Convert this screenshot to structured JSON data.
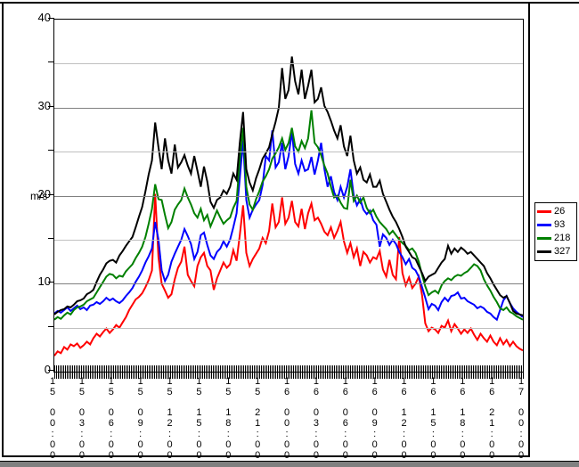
{
  "window": {
    "top_edge_color": "#000000",
    "bottom_strip_color": "#808080"
  },
  "chart": {
    "ylabel": "m/s",
    "background": "#FFFFFF",
    "axis_color": "#000000",
    "major_grid_color": "#808080",
    "minor_grid_color": "#C0C0C0",
    "y_axis": {
      "min": 0,
      "max": 40,
      "major_step": 10,
      "minor_step": 5,
      "labeled_ticks": [
        40,
        30,
        20,
        10,
        0
      ]
    },
    "legend": {
      "items": [
        {
          "label": "26",
          "color": "#FF0000"
        },
        {
          "label": "93",
          "color": "#0000FF"
        },
        {
          "label": "218",
          "color": "#008000"
        },
        {
          "label": "327",
          "color": "#000000"
        }
      ]
    }
  },
  "chart_data": {
    "type": "line",
    "title": "",
    "xlabel": "",
    "ylabel": "m/s",
    "ylim": [
      0,
      40
    ],
    "grid": "major gray lines at 10/20/30, minor light-gray lines at 5/15/25/35",
    "legend_position": "right-outside",
    "x_axis_note": "time from day 15 00:00 to day 17 00:00, 20-minute sampling, labels every 3 hours",
    "x_tick_labels": [
      "15 00:00",
      "15 03:00",
      "15 06:00",
      "15 09:00",
      "15 12:00",
      "15 15:00",
      "15 18:00",
      "15 21:00",
      "16 00:00",
      "16 03:00",
      "16 06:00",
      "16 09:00",
      "16 12:00",
      "16 15:00",
      "16 18:00",
      "16 21:00",
      "17 00:00"
    ],
    "series": [
      {
        "name": "26",
        "color": "#FF0000",
        "values": [
          1.8,
          2.3,
          2.1,
          2.8,
          2.5,
          3.1,
          2.9,
          3.2,
          2.7,
          3.0,
          3.4,
          3.1,
          3.8,
          4.3,
          4.0,
          4.5,
          4.9,
          4.4,
          4.8,
          5.3,
          5.0,
          5.6,
          6.2,
          7.0,
          7.6,
          8.2,
          8.5,
          8.9,
          9.6,
          10.4,
          11.5,
          20.2,
          13.0,
          10.0,
          9.2,
          8.4,
          8.8,
          10.5,
          11.8,
          12.5,
          14.2,
          11.0,
          10.3,
          9.7,
          12.0,
          13.0,
          13.5,
          12.0,
          11.5,
          9.3,
          10.6,
          11.5,
          12.4,
          11.8,
          12.2,
          13.8,
          12.6,
          15.5,
          18.9,
          13.5,
          12.0,
          12.8,
          13.4,
          14.0,
          15.2,
          14.6,
          16.0,
          19.1,
          16.4,
          17.0,
          19.8,
          16.8,
          17.5,
          19.4,
          17.0,
          16.5,
          18.5,
          16.2,
          18.0,
          19.1,
          17.2,
          17.5,
          16.8,
          15.9,
          15.5,
          16.4,
          15.2,
          16.0,
          17.0,
          14.8,
          13.5,
          14.6,
          13.0,
          14.0,
          12.0,
          13.6,
          13.2,
          12.4,
          13.0,
          12.8,
          13.7,
          11.6,
          10.8,
          12.7,
          11.0,
          10.5,
          15.3,
          11.2,
          9.8,
          10.7,
          9.5,
          10.0,
          10.8,
          8.7,
          5.5,
          4.6,
          5.0,
          4.8,
          4.4,
          5.2,
          5.0,
          5.8,
          4.6,
          5.4,
          4.9,
          4.3,
          4.8,
          4.4,
          4.9,
          4.2,
          3.6,
          4.3,
          3.8,
          3.4,
          4.1,
          3.4,
          3.0,
          3.8,
          3.1,
          3.6,
          2.9,
          3.4,
          2.9,
          2.6,
          2.4
        ]
      },
      {
        "name": "93",
        "color": "#0000FF",
        "values": [
          6.6,
          6.9,
          6.7,
          7.0,
          7.3,
          6.9,
          7.2,
          7.5,
          7.1,
          7.3,
          7.0,
          7.5,
          7.6,
          7.9,
          7.7,
          8.0,
          8.4,
          8.1,
          8.3,
          8.0,
          7.8,
          8.1,
          8.6,
          9.0,
          9.5,
          10.2,
          10.8,
          11.5,
          12.4,
          13.1,
          14.0,
          17.0,
          15.0,
          11.5,
          10.3,
          11.0,
          12.5,
          13.4,
          14.2,
          15.0,
          16.2,
          15.4,
          14.5,
          12.8,
          13.6,
          15.5,
          15.8,
          14.4,
          13.2,
          12.8,
          13.6,
          14.0,
          14.8,
          14.2,
          15.0,
          16.4,
          18.0,
          22.0,
          26.3,
          19.5,
          17.5,
          18.4,
          19.0,
          19.5,
          21.2,
          24.5,
          24.0,
          27.4,
          23.2,
          23.8,
          26.0,
          23.0,
          24.5,
          27.3,
          23.6,
          22.5,
          24.0,
          22.8,
          23.0,
          24.4,
          22.4,
          24.0,
          26.0,
          23.0,
          21.0,
          22.2,
          20.4,
          19.5,
          21.0,
          19.8,
          21.0,
          23.0,
          20.0,
          18.9,
          19.6,
          18.4,
          17.9,
          18.3,
          17.2,
          16.7,
          14.2,
          15.6,
          15.2,
          14.4,
          15.0,
          14.5,
          13.6,
          13.0,
          12.2,
          12.8,
          11.8,
          11.5,
          10.8,
          9.6,
          8.4,
          7.1,
          7.7,
          7.5,
          7.0,
          7.9,
          8.4,
          8.0,
          8.6,
          8.7,
          9.0,
          8.3,
          8.4,
          8.0,
          7.8,
          7.6,
          7.2,
          7.4,
          7.2,
          6.8,
          6.6,
          6.2,
          5.9,
          7.0,
          8.1,
          8.6,
          7.8,
          7.2,
          6.8,
          6.5,
          6.2
        ]
      },
      {
        "name": "218",
        "color": "#008000",
        "values": [
          5.9,
          6.2,
          6.0,
          6.4,
          6.7,
          6.5,
          7.0,
          7.3,
          7.4,
          7.6,
          8.0,
          8.2,
          8.4,
          9.0,
          9.6,
          10.2,
          10.8,
          11.1,
          11.0,
          10.6,
          10.9,
          10.8,
          11.4,
          11.8,
          12.2,
          12.9,
          13.5,
          14.2,
          15.3,
          16.8,
          18.5,
          21.3,
          19.6,
          19.5,
          17.8,
          16.3,
          17.0,
          18.4,
          19.0,
          19.5,
          20.8,
          19.8,
          19.0,
          18.0,
          17.5,
          18.5,
          17.2,
          17.8,
          16.5,
          17.4,
          18.3,
          17.5,
          16.8,
          17.2,
          17.5,
          18.6,
          19.4,
          24.0,
          27.7,
          21.0,
          19.0,
          18.4,
          19.6,
          20.5,
          21.6,
          22.2,
          23.0,
          24.2,
          24.8,
          25.5,
          26.5,
          25.2,
          26.0,
          27.7,
          25.6,
          25.0,
          26.2,
          25.4,
          26.5,
          29.7,
          26.0,
          25.5,
          24.6,
          23.4,
          22.5,
          21.0,
          19.8,
          20.0,
          19.2,
          18.6,
          18.5,
          21.8,
          19.4,
          20.0,
          19.2,
          19.8,
          18.6,
          18.0,
          18.4,
          17.6,
          17.0,
          16.6,
          16.2,
          15.6,
          16.0,
          15.5,
          15.0,
          14.6,
          14.3,
          13.8,
          14.0,
          13.5,
          12.5,
          11.0,
          9.7,
          8.7,
          9.0,
          9.2,
          8.9,
          9.8,
          10.3,
          10.6,
          10.4,
          10.8,
          11.0,
          10.9,
          11.2,
          11.4,
          11.8,
          12.2,
          12.0,
          11.5,
          10.5,
          9.8,
          9.2,
          8.5,
          7.9,
          7.2,
          7.0,
          7.3,
          6.8,
          6.6,
          6.3,
          6.1,
          5.9
        ]
      },
      {
        "name": "327",
        "color": "#000000",
        "values": [
          6.5,
          6.8,
          7.0,
          7.1,
          7.4,
          7.3,
          7.6,
          8.0,
          8.1,
          8.3,
          8.8,
          9.0,
          9.3,
          10.2,
          11.0,
          11.6,
          12.3,
          12.6,
          12.7,
          12.4,
          13.2,
          13.7,
          14.3,
          14.8,
          15.3,
          16.4,
          17.6,
          18.7,
          20.5,
          22.4,
          24.0,
          28.3,
          25.5,
          23.0,
          26.5,
          24.0,
          22.5,
          25.8,
          23.2,
          23.8,
          24.6,
          23.4,
          22.5,
          24.5,
          22.8,
          21.0,
          23.3,
          21.6,
          19.3,
          18.6,
          19.5,
          19.8,
          20.6,
          20.2,
          21.0,
          22.5,
          21.8,
          26.0,
          29.5,
          23.0,
          21.5,
          20.6,
          22.0,
          23.0,
          24.2,
          24.8,
          25.5,
          27.0,
          28.4,
          30.0,
          34.5,
          31.0,
          32.0,
          35.8,
          33.0,
          31.5,
          34.3,
          31.0,
          32.5,
          34.3,
          30.6,
          31.0,
          32.3,
          30.2,
          29.5,
          28.5,
          27.4,
          26.5,
          28.0,
          25.6,
          24.5,
          26.8,
          24.0,
          22.5,
          23.2,
          21.8,
          21.5,
          22.4,
          21.0,
          21.0,
          21.7,
          20.2,
          19.3,
          18.4,
          17.6,
          17.0,
          16.2,
          15.3,
          14.2,
          13.6,
          13.0,
          12.8,
          12.0,
          11.2,
          10.3,
          10.8,
          11.0,
          11.2,
          11.8,
          12.4,
          12.8,
          14.3,
          13.4,
          14.0,
          13.6,
          14.1,
          13.8,
          13.4,
          13.6,
          13.2,
          12.8,
          12.4,
          12.0,
          11.2,
          10.6,
          9.9,
          9.3,
          8.7,
          8.4,
          8.6,
          7.8,
          6.9,
          6.6,
          6.5,
          6.4
        ]
      }
    ]
  }
}
